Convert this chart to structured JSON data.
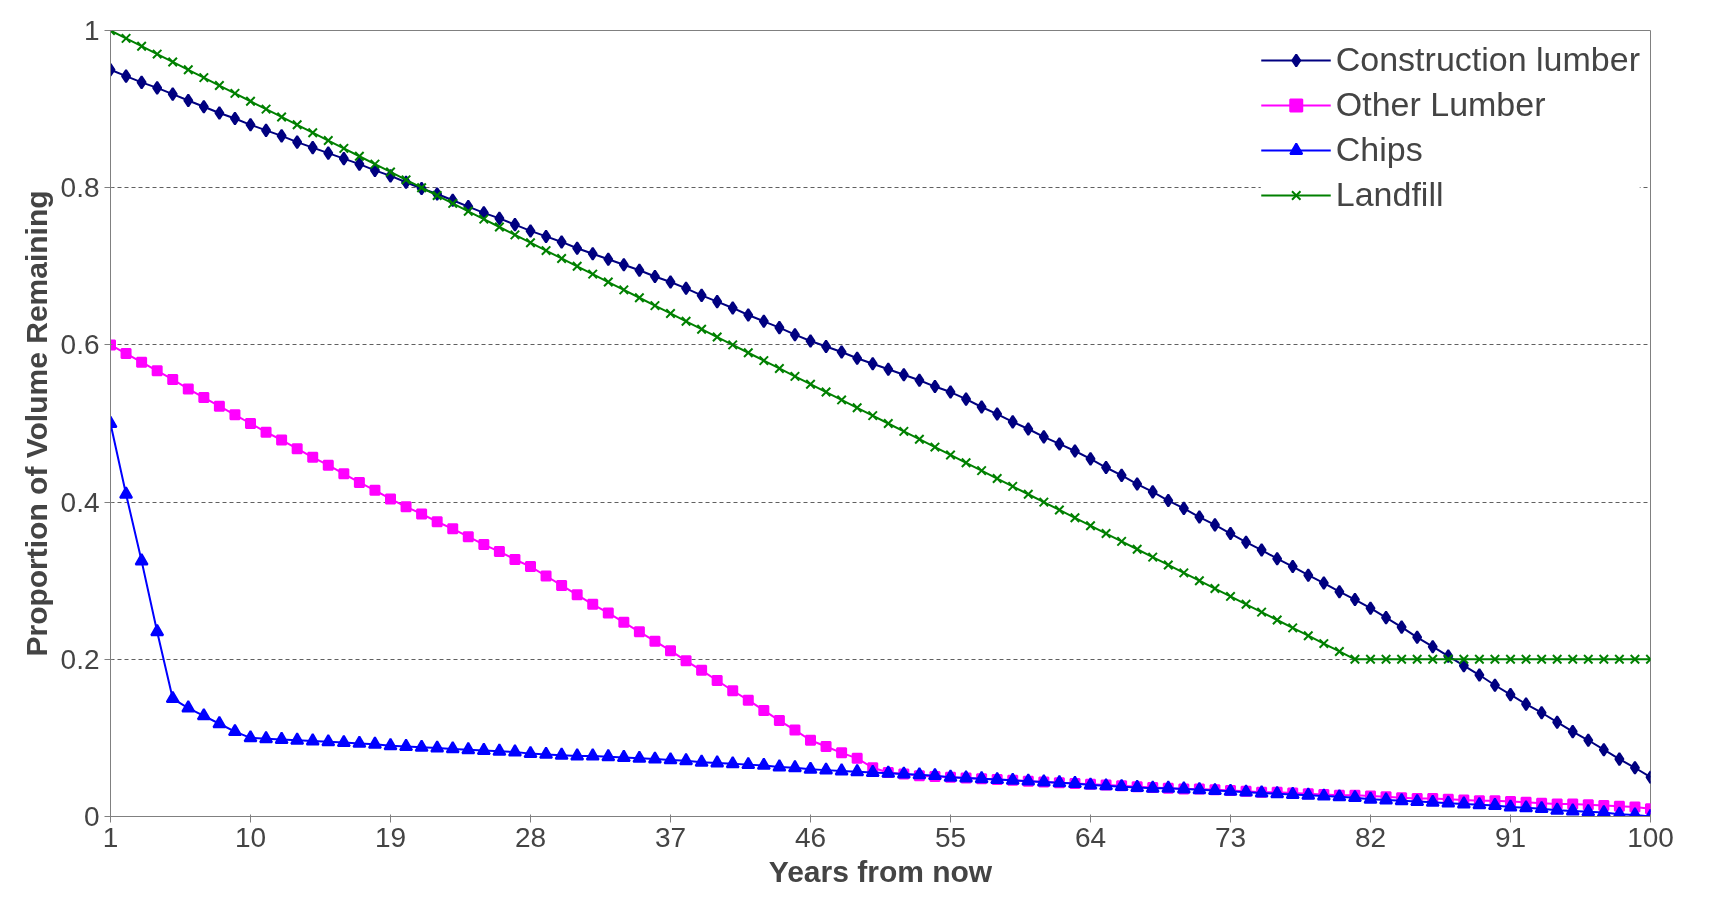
{
  "chart_data": {
    "type": "line",
    "xlabel": "Years from now",
    "ylabel": "Proportion of Volume Remaining",
    "x": [
      1,
      2,
      3,
      4,
      5,
      6,
      7,
      8,
      9,
      10,
      11,
      12,
      13,
      14,
      15,
      16,
      17,
      18,
      19,
      20,
      21,
      22,
      23,
      24,
      25,
      26,
      27,
      28,
      29,
      30,
      31,
      32,
      33,
      34,
      35,
      36,
      37,
      38,
      39,
      40,
      41,
      42,
      43,
      44,
      45,
      46,
      47,
      48,
      49,
      50,
      51,
      52,
      53,
      54,
      55,
      56,
      57,
      58,
      59,
      60,
      61,
      62,
      63,
      64,
      65,
      66,
      67,
      68,
      69,
      70,
      71,
      72,
      73,
      74,
      75,
      76,
      77,
      78,
      79,
      80,
      81,
      82,
      83,
      84,
      85,
      86,
      87,
      88,
      89,
      90,
      91,
      92,
      93,
      94,
      95,
      96,
      97,
      98,
      99,
      100
    ],
    "xlim": [
      1,
      100
    ],
    "xticks": [
      1,
      10,
      19,
      28,
      37,
      46,
      55,
      64,
      73,
      82,
      91,
      100
    ],
    "ylim": [
      0,
      1
    ],
    "yticks": [
      0,
      0.2,
      0.4,
      0.6,
      0.8,
      1
    ],
    "grid": "y",
    "legend": "top right",
    "line_style": "solid",
    "series": [
      {
        "name": "Construction lumber",
        "color": "#000080",
        "marker": "diamond",
        "values": [
          0.95,
          0.942,
          0.934,
          0.927,
          0.919,
          0.911,
          0.903,
          0.895,
          0.888,
          0.88,
          0.873,
          0.866,
          0.858,
          0.851,
          0.844,
          0.837,
          0.83,
          0.822,
          0.815,
          0.807,
          0.799,
          0.792,
          0.784,
          0.776,
          0.768,
          0.761,
          0.753,
          0.745,
          0.738,
          0.731,
          0.723,
          0.716,
          0.709,
          0.702,
          0.695,
          0.687,
          0.68,
          0.672,
          0.663,
          0.655,
          0.647,
          0.638,
          0.63,
          0.622,
          0.613,
          0.605,
          0.598,
          0.591,
          0.583,
          0.576,
          0.569,
          0.562,
          0.555,
          0.547,
          0.54,
          0.531,
          0.521,
          0.512,
          0.502,
          0.493,
          0.483,
          0.474,
          0.465,
          0.455,
          0.444,
          0.434,
          0.423,
          0.413,
          0.402,
          0.392,
          0.381,
          0.371,
          0.36,
          0.349,
          0.339,
          0.328,
          0.318,
          0.307,
          0.297,
          0.286,
          0.276,
          0.265,
          0.253,
          0.241,
          0.228,
          0.216,
          0.204,
          0.192,
          0.18,
          0.167,
          0.155,
          0.143,
          0.132,
          0.12,
          0.108,
          0.097,
          0.085,
          0.073,
          0.062,
          0.05
        ]
      },
      {
        "name": "Other Lumber",
        "color": "#ff00ff",
        "marker": "square",
        "values": [
          0.6,
          0.589,
          0.578,
          0.567,
          0.556,
          0.544,
          0.533,
          0.522,
          0.511,
          0.5,
          0.489,
          0.479,
          0.468,
          0.457,
          0.447,
          0.436,
          0.425,
          0.415,
          0.404,
          0.394,
          0.385,
          0.375,
          0.366,
          0.356,
          0.346,
          0.337,
          0.327,
          0.318,
          0.306,
          0.294,
          0.282,
          0.27,
          0.259,
          0.247,
          0.235,
          0.223,
          0.211,
          0.198,
          0.186,
          0.173,
          0.16,
          0.148,
          0.135,
          0.122,
          0.11,
          0.097,
          0.089,
          0.081,
          0.074,
          0.062,
          0.056,
          0.054,
          0.052,
          0.051,
          0.05,
          0.049,
          0.048,
          0.047,
          0.046,
          0.045,
          0.044,
          0.043,
          0.042,
          0.041,
          0.04,
          0.039,
          0.038,
          0.037,
          0.036,
          0.035,
          0.035,
          0.034,
          0.033,
          0.032,
          0.031,
          0.031,
          0.03,
          0.029,
          0.028,
          0.027,
          0.027,
          0.026,
          0.025,
          0.024,
          0.023,
          0.023,
          0.022,
          0.021,
          0.02,
          0.02,
          0.019,
          0.018,
          0.017,
          0.016,
          0.016,
          0.015,
          0.014,
          0.013,
          0.012,
          0.01
        ]
      },
      {
        "name": "Chips",
        "color": "#0000ff",
        "marker": "triangle",
        "values": [
          0.5,
          0.41,
          0.325,
          0.235,
          0.15,
          0.138,
          0.128,
          0.118,
          0.108,
          0.1,
          0.099,
          0.098,
          0.097,
          0.096,
          0.095,
          0.094,
          0.093,
          0.092,
          0.09,
          0.089,
          0.088,
          0.087,
          0.086,
          0.085,
          0.084,
          0.083,
          0.082,
          0.08,
          0.079,
          0.078,
          0.077,
          0.077,
          0.076,
          0.075,
          0.074,
          0.073,
          0.072,
          0.071,
          0.069,
          0.068,
          0.067,
          0.066,
          0.065,
          0.063,
          0.062,
          0.06,
          0.059,
          0.058,
          0.057,
          0.056,
          0.055,
          0.054,
          0.053,
          0.052,
          0.05,
          0.049,
          0.048,
          0.047,
          0.046,
          0.045,
          0.044,
          0.043,
          0.042,
          0.04,
          0.039,
          0.038,
          0.037,
          0.036,
          0.036,
          0.035,
          0.034,
          0.033,
          0.032,
          0.031,
          0.03,
          0.029,
          0.028,
          0.027,
          0.026,
          0.025,
          0.024,
          0.022,
          0.021,
          0.02,
          0.019,
          0.018,
          0.017,
          0.016,
          0.015,
          0.014,
          0.012,
          0.011,
          0.01,
          0.008,
          0.007,
          0.006,
          0.005,
          0.003,
          0.002,
          0
        ]
      },
      {
        "name": "Landfill",
        "color": "#008000",
        "marker": "cross",
        "values": [
          1,
          0.99,
          0.98,
          0.97,
          0.96,
          0.95,
          0.94,
          0.93,
          0.92,
          0.91,
          0.9,
          0.89,
          0.88,
          0.87,
          0.86,
          0.85,
          0.84,
          0.83,
          0.82,
          0.81,
          0.8,
          0.79,
          0.78,
          0.77,
          0.76,
          0.75,
          0.74,
          0.73,
          0.72,
          0.71,
          0.7,
          0.69,
          0.68,
          0.67,
          0.66,
          0.65,
          0.64,
          0.63,
          0.62,
          0.61,
          0.6,
          0.59,
          0.58,
          0.57,
          0.56,
          0.55,
          0.54,
          0.53,
          0.52,
          0.51,
          0.5,
          0.49,
          0.48,
          0.47,
          0.46,
          0.45,
          0.44,
          0.43,
          0.42,
          0.41,
          0.4,
          0.39,
          0.38,
          0.37,
          0.36,
          0.35,
          0.34,
          0.33,
          0.32,
          0.31,
          0.3,
          0.29,
          0.28,
          0.27,
          0.26,
          0.25,
          0.24,
          0.23,
          0.22,
          0.21,
          0.2,
          0.2,
          0.2,
          0.2,
          0.2,
          0.2,
          0.2,
          0.2,
          0.2,
          0.2,
          0.2,
          0.2,
          0.2,
          0.2,
          0.2,
          0.2,
          0.2,
          0.2,
          0.2,
          0.2
        ]
      }
    ]
  }
}
